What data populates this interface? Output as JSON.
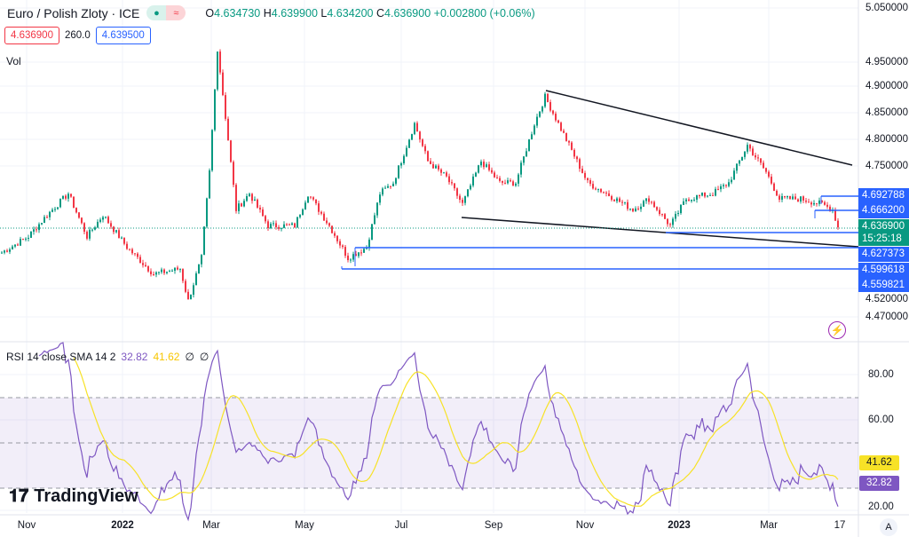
{
  "header": {
    "title": "Euro / Polish Zloty · ICE",
    "open_label": "O",
    "open": "4.634730",
    "high_label": "H",
    "high": "4.639900",
    "low_label": "L",
    "low": "4.634200",
    "close_label": "C",
    "close": "4.636900",
    "change": "+0.002800 (+0.06%)"
  },
  "quote": {
    "bid": "4.636900",
    "spread": "260.0",
    "ask": "4.639500"
  },
  "vol_label": "Vol",
  "rsi": {
    "label": "RSI 14 close SMA 14 2",
    "value": "32.82",
    "sma": "41.62",
    "na1": "∅",
    "na2": "∅"
  },
  "price_axis": [
    "5.050000",
    "4.950000",
    "4.900000",
    "4.850000",
    "4.800000",
    "4.750000",
    "4.520000",
    "4.470000"
  ],
  "price_labels": {
    "l1": "4.692788",
    "l2": "4.666200",
    "last": "4.636900",
    "countdown": "15:25:18",
    "l3": "4.627373",
    "l4": "4.599618",
    "l5": "4.559821"
  },
  "rsi_axis": [
    "80.00",
    "60.00",
    "20.00"
  ],
  "rsi_labels": {
    "sma": "41.62",
    "rsi": "32.82"
  },
  "time_axis": [
    "Nov",
    "2022",
    "Mar",
    "May",
    "Jul",
    "Sep",
    "Nov",
    "2023",
    "Mar",
    "17"
  ],
  "logo": "TradingView",
  "auto_label": "A",
  "colors": {
    "up": "#089981",
    "down": "#f23645",
    "blue": "#2962ff",
    "rsi": "#7e57c2",
    "sma": "#f7e227"
  },
  "chart_data": {
    "type": "candlestick",
    "bar_anchors": [
      [
        0,
        4.59
      ],
      [
        10,
        4.62
      ],
      [
        17,
        4.66
      ],
      [
        25,
        4.7
      ],
      [
        32,
        4.62
      ],
      [
        38,
        4.66
      ],
      [
        47,
        4.6
      ],
      [
        57,
        4.55
      ],
      [
        67,
        4.56
      ],
      [
        70,
        4.5
      ],
      [
        75,
        4.58
      ],
      [
        78,
        4.74
      ],
      [
        81,
        4.97
      ],
      [
        85,
        4.8
      ],
      [
        88,
        4.67
      ],
      [
        93,
        4.7
      ],
      [
        100,
        4.64
      ],
      [
        110,
        4.64
      ],
      [
        115,
        4.7
      ],
      [
        123,
        4.64
      ],
      [
        130,
        4.58
      ],
      [
        137,
        4.6
      ],
      [
        142,
        4.7
      ],
      [
        147,
        4.72
      ],
      [
        155,
        4.83
      ],
      [
        160,
        4.76
      ],
      [
        167,
        4.73
      ],
      [
        173,
        4.68
      ],
      [
        180,
        4.76
      ],
      [
        187,
        4.72
      ],
      [
        193,
        4.72
      ],
      [
        200,
        4.83
      ],
      [
        204,
        4.88
      ],
      [
        210,
        4.82
      ],
      [
        220,
        4.72
      ],
      [
        227,
        4.7
      ],
      [
        237,
        4.67
      ],
      [
        243,
        4.69
      ],
      [
        251,
        4.64
      ],
      [
        257,
        4.69
      ],
      [
        267,
        4.7
      ],
      [
        273,
        4.72
      ],
      [
        280,
        4.79
      ],
      [
        287,
        4.74
      ],
      [
        292,
        4.69
      ],
      [
        300,
        4.69
      ],
      [
        308,
        4.68
      ],
      [
        312,
        4.67
      ],
      [
        314,
        4.637
      ]
    ]
  }
}
